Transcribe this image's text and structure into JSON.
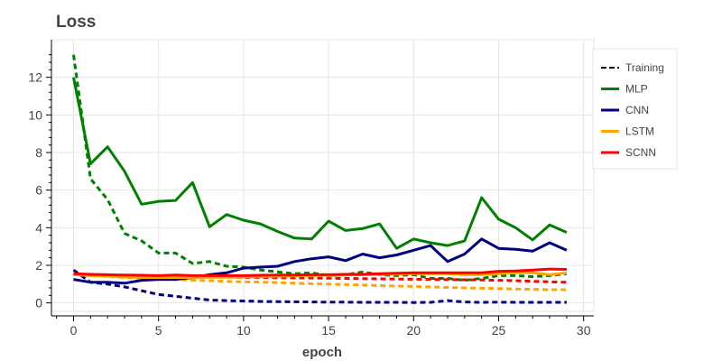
{
  "chart_data": {
    "type": "line",
    "title": "Loss",
    "xlabel": "epoch",
    "ylabel": "",
    "xlim": [
      -1.3,
      30.6
    ],
    "ylim": [
      -0.45,
      14.0
    ],
    "xticks": [
      0,
      5,
      10,
      15,
      20,
      25,
      30
    ],
    "yticks": [
      0,
      2,
      4,
      6,
      8,
      10,
      12
    ],
    "grid": true,
    "legend_position": "right",
    "legend": [
      {
        "name": "Training",
        "color": "#000000",
        "style": "dashed"
      },
      {
        "name": "MLP",
        "color": "#008000",
        "style": "solid"
      },
      {
        "name": "CNN",
        "color": "#000080",
        "style": "solid"
      },
      {
        "name": "LSTM",
        "color": "#ffa500",
        "style": "solid"
      },
      {
        "name": "SCNN",
        "color": "#ff0000",
        "style": "solid"
      }
    ],
    "x": [
      0,
      1,
      2,
      3,
      4,
      5,
      6,
      7,
      8,
      9,
      10,
      11,
      12,
      13,
      14,
      15,
      16,
      17,
      18,
      19,
      20,
      21,
      22,
      23,
      24,
      25,
      26,
      27,
      28,
      29
    ],
    "series": [
      {
        "model": "MLP",
        "split": "train",
        "color": "#008000",
        "dashed": true,
        "values": [
          13.2,
          6.6,
          5.5,
          3.7,
          3.3,
          2.65,
          2.65,
          2.1,
          2.2,
          1.95,
          1.9,
          1.75,
          1.65,
          1.55,
          1.6,
          1.45,
          1.5,
          1.65,
          1.5,
          1.45,
          1.5,
          1.3,
          1.3,
          1.2,
          1.3,
          1.45,
          1.45,
          1.4,
          1.45,
          1.55
        ]
      },
      {
        "model": "MLP",
        "split": "validation",
        "color": "#008000",
        "dashed": false,
        "values": [
          12.0,
          7.4,
          8.3,
          7.0,
          5.25,
          5.4,
          5.45,
          6.4,
          4.05,
          4.7,
          4.4,
          4.2,
          3.8,
          3.45,
          3.4,
          4.35,
          3.85,
          3.95,
          4.2,
          2.9,
          3.4,
          3.2,
          3.05,
          3.3,
          5.6,
          4.45,
          4.0,
          3.35,
          4.15,
          3.75
        ]
      },
      {
        "model": "CNN",
        "split": "train",
        "color": "#000080",
        "dashed": true,
        "values": [
          1.75,
          1.1,
          1.0,
          0.85,
          0.65,
          0.45,
          0.35,
          0.25,
          0.15,
          0.12,
          0.1,
          0.08,
          0.07,
          0.06,
          0.05,
          0.04,
          0.04,
          0.03,
          0.03,
          0.03,
          0.02,
          0.03,
          0.12,
          0.05,
          0.03,
          0.04,
          0.03,
          0.03,
          0.03,
          0.03
        ]
      },
      {
        "model": "CNN",
        "split": "validation",
        "color": "#000080",
        "dashed": false,
        "values": [
          1.25,
          1.1,
          1.1,
          1.05,
          1.2,
          1.25,
          1.25,
          1.35,
          1.5,
          1.6,
          1.85,
          1.9,
          1.95,
          2.2,
          2.35,
          2.45,
          2.25,
          2.6,
          2.4,
          2.55,
          2.8,
          3.05,
          2.2,
          2.6,
          3.4,
          2.9,
          2.85,
          2.75,
          3.2,
          2.8
        ]
      },
      {
        "model": "LSTM",
        "split": "train",
        "color": "#ffa500",
        "dashed": true,
        "values": [
          1.55,
          1.45,
          1.4,
          1.35,
          1.3,
          1.28,
          1.25,
          1.2,
          1.18,
          1.15,
          1.12,
          1.1,
          1.08,
          1.05,
          1.02,
          1.0,
          0.98,
          0.95,
          0.92,
          0.9,
          0.88,
          0.85,
          0.82,
          0.8,
          0.78,
          0.76,
          0.74,
          0.72,
          0.7,
          0.7
        ]
      },
      {
        "model": "LSTM",
        "split": "validation",
        "color": "#ffa500",
        "dashed": false,
        "values": [
          1.5,
          1.45,
          1.42,
          1.38,
          1.35,
          1.35,
          1.35,
          1.35,
          1.36,
          1.37,
          1.38,
          1.4,
          1.42,
          1.44,
          1.45,
          1.47,
          1.48,
          1.5,
          1.52,
          1.53,
          1.55,
          1.55,
          1.55,
          1.5,
          1.5,
          1.55,
          1.6,
          1.6,
          1.5,
          1.6
        ]
      },
      {
        "model": "SCNN",
        "split": "train",
        "color": "#ff0000",
        "dashed": true,
        "values": [
          1.5,
          1.48,
          1.47,
          1.45,
          1.43,
          1.42,
          1.4,
          1.39,
          1.38,
          1.37,
          1.36,
          1.35,
          1.34,
          1.33,
          1.32,
          1.31,
          1.3,
          1.29,
          1.28,
          1.27,
          1.26,
          1.25,
          1.24,
          1.23,
          1.22,
          1.2,
          1.18,
          1.15,
          1.12,
          1.1
        ]
      },
      {
        "model": "SCNN",
        "split": "validation",
        "color": "#ff0000",
        "dashed": false,
        "values": [
          1.55,
          1.52,
          1.5,
          1.48,
          1.47,
          1.45,
          1.48,
          1.45,
          1.45,
          1.45,
          1.45,
          1.47,
          1.48,
          1.48,
          1.5,
          1.5,
          1.52,
          1.52,
          1.55,
          1.58,
          1.6,
          1.6,
          1.6,
          1.6,
          1.6,
          1.68,
          1.7,
          1.75,
          1.8,
          1.78
        ]
      }
    ]
  }
}
